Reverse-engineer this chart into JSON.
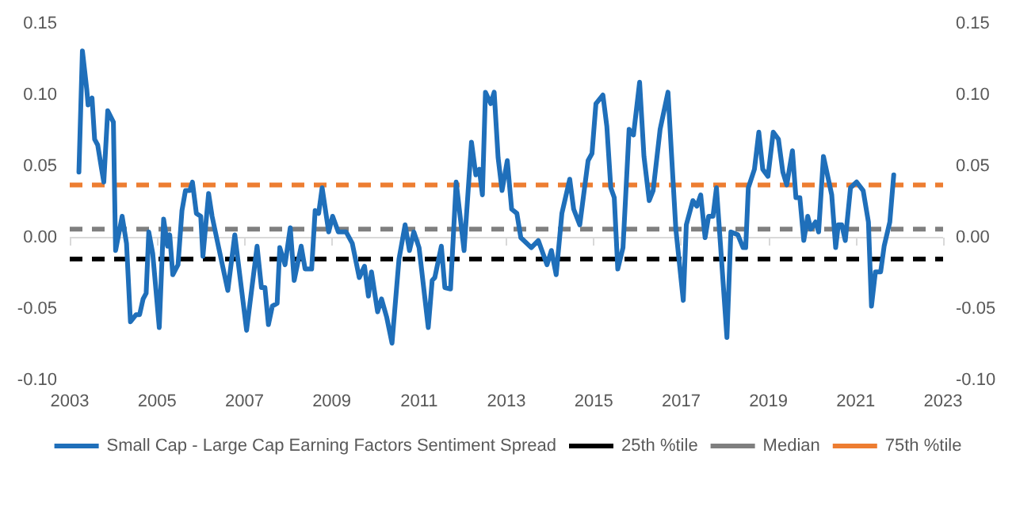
{
  "chart_data": {
    "type": "line",
    "legend": "bottom",
    "grid": false,
    "marker": "none",
    "line_style": "solid",
    "xlim": [
      2003,
      2023
    ],
    "xticks": [
      2003,
      2005,
      2007,
      2009,
      2011,
      2013,
      2015,
      2017,
      2019,
      2021,
      2023
    ],
    "ylim": [
      -0.1,
      0.15
    ],
    "yticks": [
      {
        "value": -0.1,
        "label": "-0.10"
      },
      {
        "value": -0.05,
        "label": "-0.05"
      },
      {
        "value": 0,
        "label": "0.00"
      },
      {
        "value": 0.05,
        "label": "0.05"
      },
      {
        "value": 0.1,
        "label": "0.10"
      },
      {
        "value": 0.15,
        "label": "0.15"
      }
    ],
    "y2lim": [
      -0.1,
      0.15
    ],
    "y2ticks": [
      {
        "value": -0.1,
        "label": "-0.10"
      },
      {
        "value": -0.05,
        "label": "-0.05"
      },
      {
        "value": 0,
        "label": "0.00"
      },
      {
        "value": 0.05,
        "label": "0.05"
      },
      {
        "value": 0.1,
        "label": "0.10"
      },
      {
        "value": 0.15,
        "label": "0.15"
      }
    ],
    "series": [
      {
        "name": "Small Cap - Large Cap Earning Factors Sentiment Spread",
        "color": "#1f6fba",
        "x": [
          2003.21,
          2003.29,
          2003.39,
          2003.42,
          2003.51,
          2003.57,
          2003.64,
          2003.73,
          2003.78,
          2003.87,
          2004.0,
          2004.05,
          2004.2,
          2004.3,
          2004.39,
          2004.52,
          2004.6,
          2004.68,
          2004.75,
          2004.81,
          2004.9,
          2005.05,
          2005.15,
          2005.24,
          2005.29,
          2005.36,
          2005.48,
          2005.57,
          2005.65,
          2005.75,
          2005.81,
          2005.9,
          2006.0,
          2006.05,
          2006.18,
          2006.26,
          2006.39,
          2006.62,
          2006.78,
          2007.05,
          2007.29,
          2007.39,
          2007.47,
          2007.55,
          2007.64,
          2007.75,
          2007.81,
          2007.93,
          2008.05,
          2008.14,
          2008.3,
          2008.39,
          2008.54,
          2008.62,
          2008.7,
          2008.78,
          2008.93,
          2009.02,
          2009.15,
          2009.33,
          2009.47,
          2009.63,
          2009.75,
          2009.84,
          2009.91,
          2010.05,
          2010.14,
          2010.26,
          2010.38,
          2010.54,
          2010.68,
          2010.78,
          2010.88,
          2011.0,
          2011.21,
          2011.3,
          2011.36,
          2011.51,
          2011.59,
          2011.72,
          2011.85,
          2012.03,
          2012.2,
          2012.3,
          2012.38,
          2012.45,
          2012.52,
          2012.64,
          2012.72,
          2012.81,
          2012.9,
          2013.02,
          2013.12,
          2013.24,
          2013.33,
          2013.57,
          2013.73,
          2013.93,
          2014.03,
          2014.14,
          2014.27,
          2014.45,
          2014.54,
          2014.68,
          2014.87,
          2014.96,
          2015.05,
          2015.21,
          2015.3,
          2015.39,
          2015.47,
          2015.55,
          2015.67,
          2015.81,
          2015.91,
          2016.05,
          2016.15,
          2016.27,
          2016.36,
          2016.52,
          2016.7,
          2016.78,
          2016.88,
          2017.05,
          2017.12,
          2017.27,
          2017.36,
          2017.45,
          2017.55,
          2017.63,
          2017.73,
          2017.81,
          2017.9,
          2018.05,
          2018.14,
          2018.3,
          2018.42,
          2018.48,
          2018.54,
          2018.68,
          2018.78,
          2018.87,
          2018.99,
          2019.11,
          2019.23,
          2019.33,
          2019.42,
          2019.55,
          2019.63,
          2019.72,
          2019.81,
          2019.9,
          2019.97,
          2020.08,
          2020.15,
          2020.26,
          2020.45,
          2020.54,
          2020.6,
          2020.68,
          2020.76,
          2020.88,
          2021.02,
          2021.17,
          2021.29,
          2021.36,
          2021.45,
          2021.57,
          2021.65,
          2021.78,
          2021.87
        ],
        "values": [
          0.046,
          0.131,
          0.104,
          0.093,
          0.098,
          0.069,
          0.065,
          0.048,
          0.039,
          0.089,
          0.081,
          -0.009,
          0.015,
          -0.004,
          -0.059,
          -0.054,
          -0.054,
          -0.043,
          -0.039,
          0.004,
          -0.011,
          -0.063,
          0.013,
          -0.006,
          0.002,
          -0.026,
          -0.019,
          0.019,
          0.033,
          0.033,
          0.039,
          0.017,
          0.015,
          -0.013,
          0.031,
          0.015,
          -0.004,
          -0.037,
          0.002,
          -0.065,
          -0.006,
          -0.035,
          -0.035,
          -0.061,
          -0.048,
          -0.046,
          -0.007,
          -0.019,
          0.007,
          -0.03,
          -0.006,
          -0.022,
          -0.022,
          0.019,
          0.017,
          0.035,
          0.004,
          0.015,
          0.004,
          0.004,
          -0.004,
          -0.028,
          -0.02,
          -0.041,
          -0.024,
          -0.052,
          -0.043,
          -0.056,
          -0.074,
          -0.015,
          0.009,
          -0.009,
          0.004,
          -0.007,
          -0.063,
          -0.03,
          -0.028,
          -0.006,
          -0.035,
          -0.036,
          0.039,
          -0.009,
          0.067,
          0.044,
          0.048,
          0.03,
          0.102,
          0.094,
          0.102,
          0.056,
          0.033,
          0.054,
          0.02,
          0.017,
          0.0,
          -0.007,
          -0.002,
          -0.019,
          -0.009,
          -0.026,
          0.017,
          0.041,
          0.02,
          0.009,
          0.054,
          0.059,
          0.094,
          0.1,
          0.078,
          0.035,
          0.028,
          -0.022,
          -0.007,
          0.076,
          0.072,
          0.109,
          0.057,
          0.026,
          0.033,
          0.076,
          0.102,
          0.059,
          0.006,
          -0.044,
          0.009,
          0.026,
          0.022,
          0.03,
          0.0,
          0.015,
          0.015,
          0.035,
          -0.004,
          -0.07,
          0.004,
          0.002,
          -0.007,
          -0.007,
          0.035,
          0.048,
          0.074,
          0.048,
          0.043,
          0.074,
          0.069,
          0.046,
          0.037,
          0.061,
          0.028,
          0.028,
          -0.002,
          0.015,
          0.006,
          0.011,
          0.004,
          0.057,
          0.03,
          -0.007,
          0.009,
          0.009,
          -0.002,
          0.035,
          0.039,
          0.033,
          0.011,
          -0.048,
          -0.024,
          -0.024,
          -0.006,
          0.011,
          0.044
        ]
      }
    ],
    "ref_lines": [
      {
        "axis": "y",
        "value": 0,
        "color": "#d9d9d9",
        "line_style": "solid"
      },
      {
        "axis": "y",
        "value": -0.015,
        "label": "25th %tile",
        "color": "#000000",
        "line_style": "dashed"
      },
      {
        "axis": "y",
        "value": 0.006,
        "label": "Median",
        "color": "#7f7f7f",
        "line_style": "dashed"
      },
      {
        "axis": "y",
        "value": 0.037,
        "label": "75th %tile",
        "color": "#ed7d31",
        "line_style": "dashed"
      }
    ]
  }
}
